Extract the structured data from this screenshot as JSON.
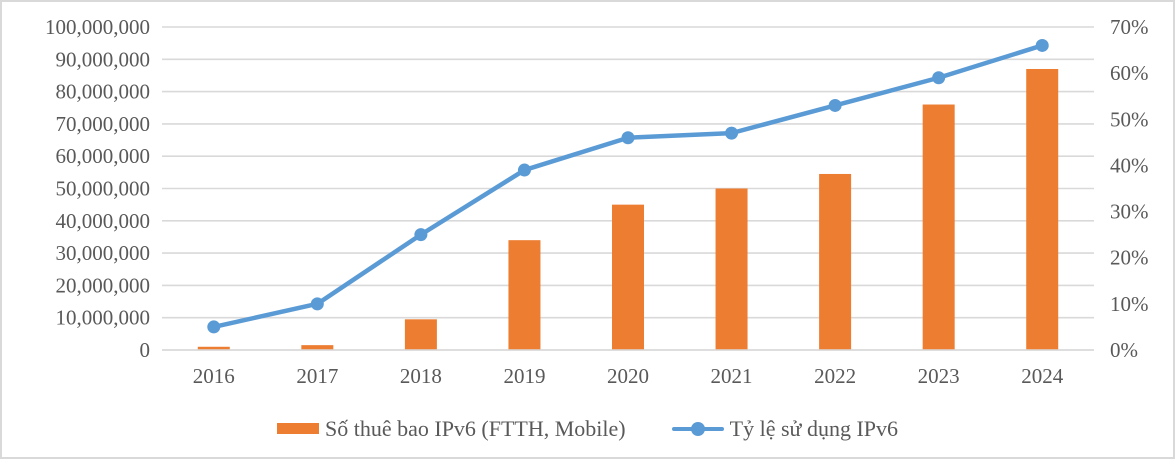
{
  "colors": {
    "bar": "#ED7D31",
    "line": "#5B9BD5",
    "axis_text": "#595959",
    "gridline": "#D9D9D9",
    "border": "#D9D9D9",
    "background": "#FFFFFF"
  },
  "legend": {
    "bar_label": "Số thuê bao IPv6 (FTTH, Mobile)",
    "line_label": "Tỷ lệ sử dụng IPv6"
  },
  "chart_data": {
    "type": "combo",
    "categories": [
      "2016",
      "2017",
      "2018",
      "2019",
      "2020",
      "2021",
      "2022",
      "2023",
      "2024"
    ],
    "series": [
      {
        "name": "Số thuê bao IPv6 (FTTH, Mobile)",
        "type": "bar",
        "axis": "left",
        "color": "#ED7D31",
        "values": [
          1000000,
          1500000,
          9500000,
          34000000,
          45000000,
          50000000,
          54500000,
          76000000,
          87000000
        ]
      },
      {
        "name": "Tỷ lệ sử dụng IPv6",
        "type": "line",
        "axis": "right",
        "color": "#5B9BD5",
        "values": [
          5,
          10,
          25,
          39,
          46,
          47,
          53,
          59,
          66
        ]
      }
    ],
    "left_axis": {
      "min": 0,
      "max": 100000000,
      "tick_interval": 10000000,
      "tick_labels": [
        "0",
        "10,000,000",
        "20,000,000",
        "30,000,000",
        "40,000,000",
        "50,000,000",
        "60,000,000",
        "70,000,000",
        "80,000,000",
        "90,000,000",
        "100,000,000"
      ]
    },
    "right_axis": {
      "min": 0,
      "max": 70,
      "tick_interval": 10,
      "tick_labels": [
        "0%",
        "10%",
        "20%",
        "30%",
        "40%",
        "50%",
        "60%",
        "70%"
      ]
    },
    "grid": true,
    "legend_position": "bottom",
    "title": ""
  }
}
